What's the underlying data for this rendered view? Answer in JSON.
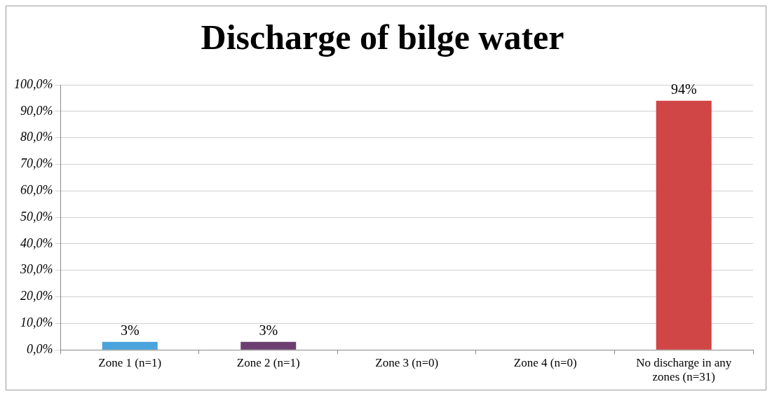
{
  "chart_data": {
    "type": "bar",
    "title": "Discharge of bilge water",
    "categories": [
      "Zone 1 (n=1)",
      "Zone 2 (n=1)",
      "Zone 3 (n=0)",
      "Zone 4 (n=0)",
      "No discharge in any zones (n=31)"
    ],
    "values": [
      3,
      3,
      0,
      0,
      94
    ],
    "value_labels": [
      "3%",
      "3%",
      null,
      null,
      "94%"
    ],
    "colors": [
      "#4aa3db",
      "#6b3f6f",
      null,
      null,
      "#d04545"
    ],
    "ylim": [
      0,
      100
    ],
    "yticks": [
      {
        "value": 0,
        "label": "0,0%"
      },
      {
        "value": 10,
        "label": "10,0%"
      },
      {
        "value": 20,
        "label": "20,0%"
      },
      {
        "value": 30,
        "label": "30,0%"
      },
      {
        "value": 40,
        "label": "40,0%"
      },
      {
        "value": 50,
        "label": "50,0%"
      },
      {
        "value": 60,
        "label": "60,0%"
      },
      {
        "value": 70,
        "label": "70,0%"
      },
      {
        "value": 80,
        "label": "80,0%"
      },
      {
        "value": 90,
        "label": "90,0%"
      },
      {
        "value": 100,
        "label": "100,0%"
      }
    ],
    "grid": "y",
    "legend": false
  }
}
